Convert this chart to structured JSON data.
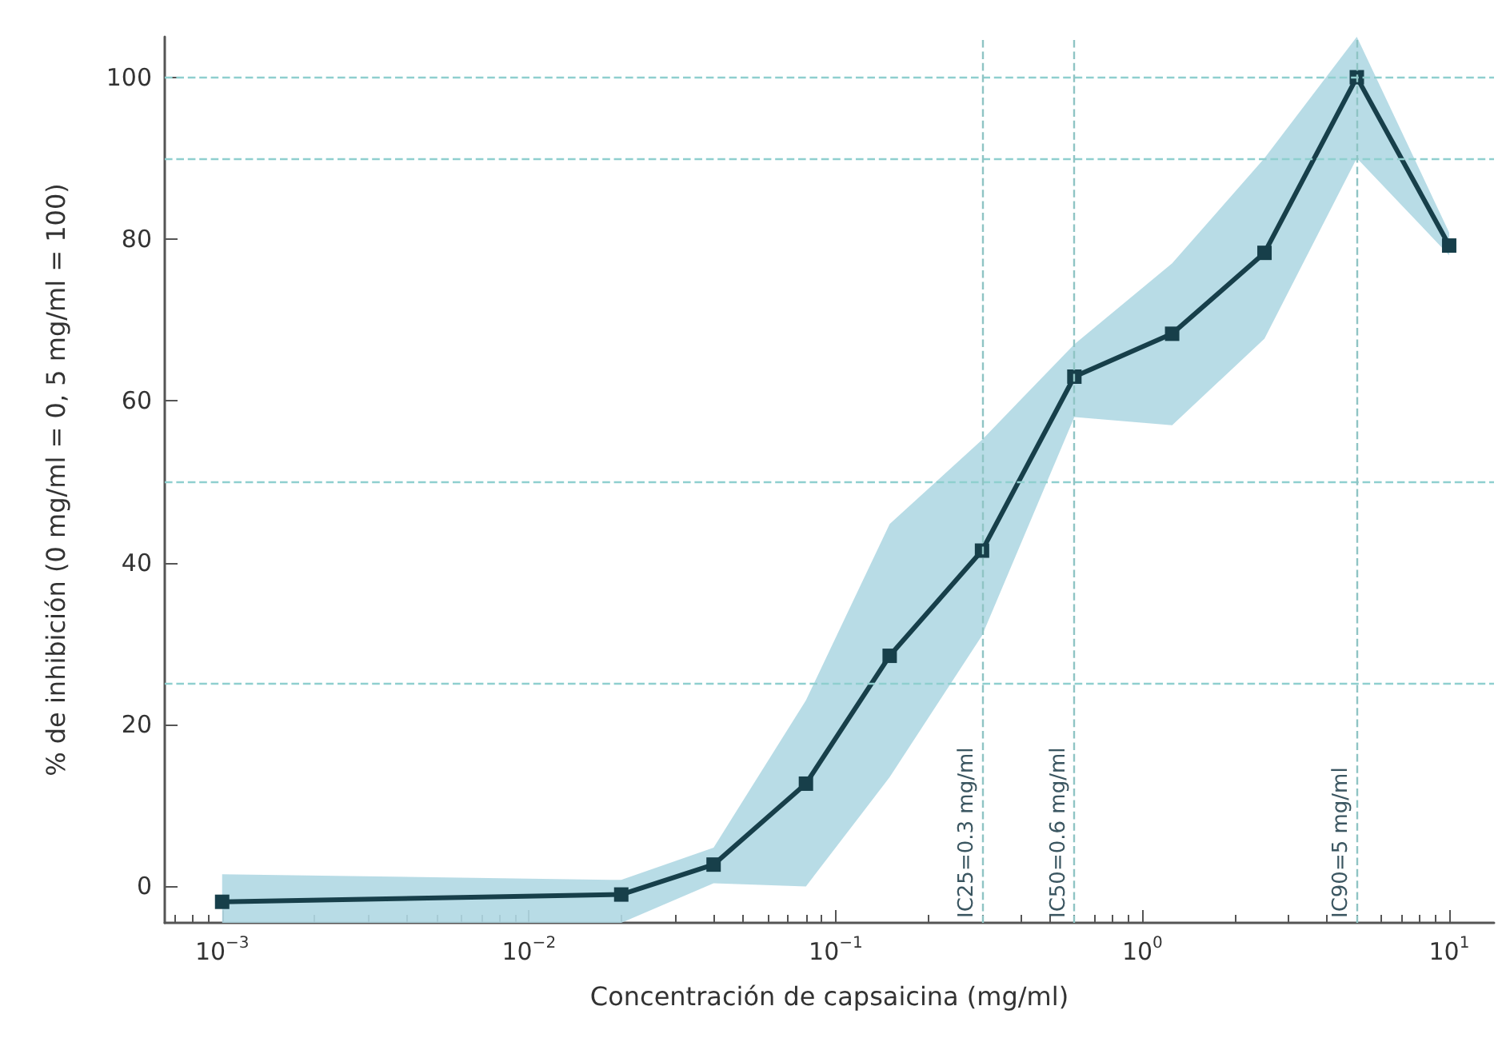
{
  "chart_data": {
    "type": "line",
    "xlabel": "Concentración de capsaicina (mg/ml)",
    "ylabel": "% de inhibición (0 mg/ml = 0, 5 mg/ml = 100)",
    "x": [
      0.001,
      0.02,
      0.04,
      0.08,
      0.15,
      0.3,
      0.6,
      1.25,
      2.5,
      5,
      10
    ],
    "series": [
      {
        "color": "#173f4a",
        "values": [
          -1.9,
          -1,
          2.7,
          12.7,
          28.5,
          41.5,
          63,
          68.3,
          78.3,
          100,
          79.2
        ],
        "lower": [
          -4.5,
          -4.5,
          0.4,
          0,
          13.5,
          31,
          58,
          57,
          67.7,
          90,
          78
        ],
        "upper": [
          1.5,
          0.8,
          4.8,
          23,
          44.8,
          55.2,
          67,
          77,
          90,
          105,
          80.8
        ]
      }
    ],
    "log": "x",
    "xlim": [
      0.00065,
      14
    ],
    "ylim": [
      -4.5,
      105
    ],
    "xticks": [
      {
        "value": 0.001,
        "label": "10$^{−3}$"
      },
      {
        "value": 0.01,
        "label": "10$^{−2}$"
      },
      {
        "value": 0.1,
        "label": "10$^{−1}$"
      },
      {
        "value": 1,
        "label": "10$^{0}$"
      },
      {
        "value": 10,
        "label": "10$^{1}$"
      }
    ],
    "yticks": [
      0,
      20,
      40,
      60,
      80,
      100
    ],
    "marker": "square",
    "line_style": "solid",
    "ref_lines": [
      {
        "axis": "y",
        "value": 25,
        "label": null,
        "color": "#8fcfcf",
        "line_style": "dashed"
      },
      {
        "axis": "y",
        "value": 50,
        "label": null,
        "color": "#8fcfcf",
        "line_style": "dashed"
      },
      {
        "axis": "y",
        "value": 90,
        "label": null,
        "color": "#8fcfcf",
        "line_style": "dashed"
      },
      {
        "axis": "y",
        "value": 100,
        "label": null,
        "color": "#8fcfcf",
        "line_style": "dashed"
      },
      {
        "axis": "x",
        "value": 0.3,
        "label": "IC25=0.3 mg/ml",
        "color": "#8fc4c4",
        "line_style": "dashed"
      },
      {
        "axis": "x",
        "value": 0.6,
        "label": "IC50=0.6 mg/ml",
        "color": "#8fc4c4",
        "line_style": "dashed"
      },
      {
        "axis": "x",
        "value": 5,
        "label": "IC90=5 mg/ml",
        "color": "#8fc4c4",
        "line_style": "dashed"
      }
    ]
  }
}
